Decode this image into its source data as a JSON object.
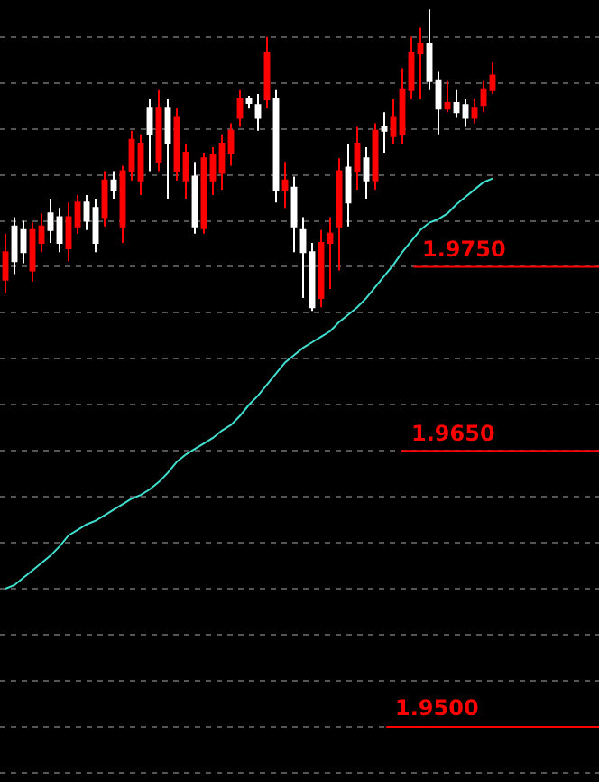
{
  "chart_data": {
    "type": "candlestick",
    "categories": [
      null,
      null,
      null,
      null,
      null,
      null,
      null,
      null,
      null,
      null,
      null,
      null,
      null,
      null,
      null,
      null,
      null,
      null,
      null,
      null,
      null,
      null,
      null,
      null,
      null,
      null,
      null,
      null,
      null,
      null,
      null,
      null,
      null,
      null,
      null,
      null,
      null,
      null,
      null,
      null,
      null,
      null,
      null,
      null,
      null,
      null,
      null,
      null,
      null,
      null,
      null,
      null,
      null,
      null,
      null
    ],
    "ylim": [
      1.947,
      1.9895
    ],
    "yticks": [
      {
        "value": 1.9475,
        "label": null
      },
      {
        "value": 1.95,
        "label": null
      },
      {
        "value": 1.9525,
        "label": null
      },
      {
        "value": 1.955,
        "label": null
      },
      {
        "value": 1.9575,
        "label": null
      },
      {
        "value": 1.96,
        "label": null
      },
      {
        "value": 1.9625,
        "label": null
      },
      {
        "value": 1.965,
        "label": null
      },
      {
        "value": 1.9675,
        "label": null
      },
      {
        "value": 1.97,
        "label": null
      },
      {
        "value": 1.9725,
        "label": null
      },
      {
        "value": 1.975,
        "label": null
      },
      {
        "value": 1.9775,
        "label": null
      },
      {
        "value": 1.98,
        "label": null
      },
      {
        "value": 1.9825,
        "label": null
      },
      {
        "value": 1.985,
        "label": null
      },
      {
        "value": 1.9875,
        "label": null
      }
    ],
    "grid": "y",
    "series": [
      {
        "colors": [
          "#ff0000",
          "#ffffff",
          "#ffffff",
          "#ff0000",
          "#ff0000",
          "#ffffff",
          "#ffffff",
          "#ff0000",
          "#ff0000",
          "#ffffff",
          "#ffffff",
          "#ff0000",
          "#ffffff",
          "#ff0000",
          "#ff0000",
          "#ff0000",
          "#ffffff",
          "#ff0000",
          "#ffffff",
          "#ff0000",
          "#ff0000",
          "#ffffff",
          "#ff0000",
          "#ff0000",
          "#ff0000",
          "#ff0000",
          "#ff0000",
          "#ffffff",
          "#ffffff",
          "#ff0000",
          "#ffffff",
          "#ff0000",
          "#ffffff",
          "#ffffff",
          "#ffffff",
          "#ff0000",
          "#ff0000",
          "#ff0000",
          "#ffffff",
          "#ff0000",
          "#ffffff",
          "#ff0000",
          "#ffffff",
          "#ff0000",
          "#ff0000",
          "#ff0000",
          "#ff0000",
          "#ffffff",
          "#ffffff",
          "#ff0000",
          "#ffffff",
          "#ffffff",
          "#ff0000",
          "#ff0000",
          "#ff0000"
        ],
        "ohlc": [
          [
            1.9743,
            1.9768,
            1.9736,
            1.9758
          ],
          [
            1.9772,
            1.9777,
            1.9746,
            1.9753
          ],
          [
            1.977,
            1.9775,
            1.9752,
            1.9758
          ],
          [
            1.9748,
            1.9774,
            1.9742,
            1.977
          ],
          [
            1.9763,
            1.9779,
            1.9758,
            1.9772
          ],
          [
            1.9779,
            1.9787,
            1.9763,
            1.977
          ],
          [
            1.9777,
            1.9782,
            1.9758,
            1.9763
          ],
          [
            1.976,
            1.9785,
            1.9753,
            1.9777
          ],
          [
            1.9772,
            1.9789,
            1.9768,
            1.9785
          ],
          [
            1.9785,
            1.9789,
            1.977,
            1.9775
          ],
          [
            1.9782,
            1.9787,
            1.9758,
            1.9763
          ],
          [
            1.9777,
            1.9802,
            1.9772,
            1.9797
          ],
          [
            1.9797,
            1.9802,
            1.9787,
            1.9792
          ],
          [
            1.9772,
            1.9805,
            1.9763,
            1.9802
          ],
          [
            1.9802,
            1.9824,
            1.9797,
            1.9819
          ],
          [
            1.9797,
            1.9822,
            1.9789,
            1.9817
          ],
          [
            1.9836,
            1.9841,
            1.9802,
            1.9822
          ],
          [
            1.9807,
            1.9846,
            1.9802,
            1.9836
          ],
          [
            1.9836,
            1.9841,
            1.9787,
            1.9817
          ],
          [
            1.9802,
            1.9836,
            1.9797,
            1.9831
          ],
          [
            1.9797,
            1.9817,
            1.9787,
            1.9812
          ],
          [
            1.9799,
            1.9807,
            1.9768,
            1.9772
          ],
          [
            1.9771,
            1.9812,
            1.9768,
            1.9809
          ],
          [
            1.9797,
            1.9815,
            1.9789,
            1.9811
          ],
          [
            1.9801,
            1.9822,
            1.9792,
            1.9817
          ],
          [
            1.9812,
            1.9828,
            1.9805,
            1.9824
          ],
          [
            1.9831,
            1.9846,
            1.9826,
            1.9841
          ],
          [
            1.9841,
            1.9843,
            1.9836,
            1.9839
          ],
          [
            1.9838,
            1.9844,
            1.9824,
            1.9831
          ],
          [
            1.9841,
            1.9875,
            1.9836,
            1.9866
          ],
          [
            1.9841,
            1.9846,
            1.9785,
            1.9792
          ],
          [
            1.9792,
            1.9807,
            1.9782,
            1.9797
          ],
          [
            1.9793,
            1.9799,
            1.9758,
            1.9772
          ],
          [
            1.977,
            1.9777,
            1.9733,
            1.9758
          ],
          [
            1.9758,
            1.9763,
            1.9726,
            1.9728
          ],
          [
            1.9733,
            1.977,
            1.9728,
            1.9763
          ],
          [
            1.9763,
            1.9777,
            1.9738,
            1.9768
          ],
          [
            1.9772,
            1.9809,
            1.9748,
            1.9802
          ],
          [
            1.9804,
            1.9817,
            1.9772,
            1.9785
          ],
          [
            1.9802,
            1.9826,
            1.9792,
            1.9817
          ],
          [
            1.9809,
            1.9815,
            1.9787,
            1.9797
          ],
          [
            1.9797,
            1.9828,
            1.9792,
            1.9824
          ],
          [
            1.9826,
            1.9834,
            1.9812,
            1.9824
          ],
          [
            1.9821,
            1.9841,
            1.9817,
            1.9831
          ],
          [
            1.9822,
            1.9858,
            1.9817,
            1.9846
          ],
          [
            1.9846,
            1.9875,
            1.9841,
            1.9866
          ],
          [
            1.9866,
            1.988,
            1.9841,
            1.9871
          ],
          [
            1.9871,
            1.989,
            1.9846,
            1.9851
          ],
          [
            1.9851,
            1.9856,
            1.9822,
            1.9836
          ],
          [
            1.9836,
            1.9851,
            1.9834,
            1.9839
          ],
          [
            1.9839,
            1.9846,
            1.9831,
            1.9834
          ],
          [
            1.9838,
            1.9841,
            1.9826,
            1.9831
          ],
          [
            1.9831,
            1.9841,
            1.9828,
            1.9836
          ],
          [
            1.9838,
            1.9851,
            1.9834,
            1.9846
          ],
          [
            1.9846,
            1.9861,
            1.9844,
            1.9854
          ]
        ]
      },
      {
        "type": "line",
        "color": "#40e0d0",
        "values": [
          1.9575,
          1.9577,
          1.9581,
          1.9585,
          1.9589,
          1.9593,
          1.9598,
          1.9604,
          1.9607,
          1.961,
          1.9612,
          1.9615,
          1.9618,
          1.9621,
          1.9624,
          1.9626,
          1.9629,
          1.9633,
          1.9638,
          1.9644,
          1.9648,
          1.9651,
          1.9654,
          1.9657,
          1.9661,
          1.9664,
          1.9669,
          1.9675,
          1.968,
          1.9686,
          1.9692,
          1.9698,
          1.9702,
          1.9706,
          1.9709,
          1.9712,
          1.9715,
          1.972,
          1.9724,
          1.9728,
          1.9733,
          1.9739,
          1.9745,
          1.9751,
          1.9758,
          1.9764,
          1.977,
          1.9774,
          1.9776,
          1.9779,
          1.9784,
          1.9788,
          1.9792,
          1.9796,
          1.9798
        ]
      }
    ],
    "ref_lines": [
      {
        "axis": "y",
        "value": 1.975,
        "label": "1.9750",
        "color": "#ff0000"
      },
      {
        "axis": "y",
        "value": 1.965,
        "label": "1.9650",
        "color": "#ff0000"
      },
      {
        "axis": "y",
        "value": 1.95,
        "label": "1.9500",
        "color": "#ff0000"
      }
    ]
  }
}
